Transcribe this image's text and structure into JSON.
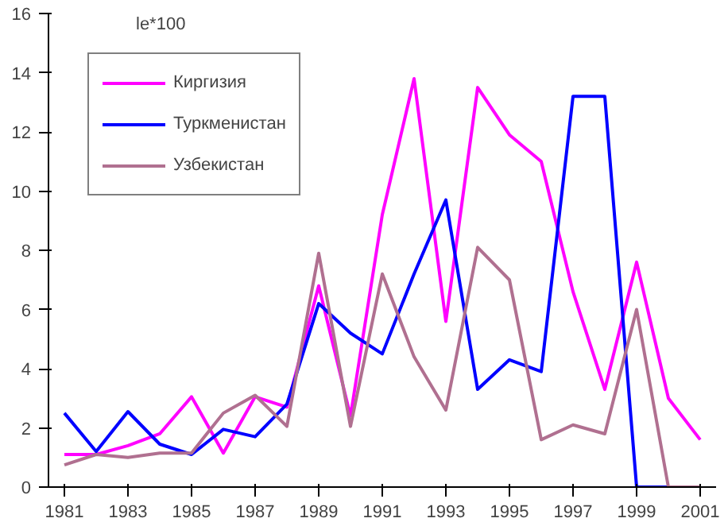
{
  "chart_data": {
    "type": "line",
    "annotations": [
      "le*100"
    ],
    "x": [
      1981,
      1982,
      1983,
      1984,
      1985,
      1986,
      1987,
      1988,
      1989,
      1990,
      1991,
      1992,
      1993,
      1994,
      1995,
      1996,
      1997,
      1998,
      1999,
      2000,
      2001
    ],
    "xlim": [
      1980.5,
      2001.5
    ],
    "xticks": [
      1981,
      1983,
      1985,
      1987,
      1989,
      1991,
      1993,
      1995,
      1997,
      1999,
      2001
    ],
    "ylim": [
      0,
      16
    ],
    "yticks": [
      0,
      2,
      4,
      6,
      8,
      10,
      12,
      14,
      16
    ],
    "grid": false,
    "legend": "top left",
    "marker": "none",
    "line_style": "solid",
    "series": [
      {
        "name": "Киргизия",
        "color": "#ff00ff",
        "values": [
          1.1,
          1.1,
          1.4,
          1.8,
          3.05,
          1.15,
          3.05,
          2.7,
          6.8,
          2.4,
          9.2,
          13.8,
          5.6,
          13.5,
          11.9,
          11.0,
          6.6,
          3.3,
          7.6,
          3.0,
          1.6
        ]
      },
      {
        "name": "Туркменистан",
        "color": "#0000ff",
        "values": [
          2.5,
          1.2,
          2.55,
          1.45,
          1.1,
          1.95,
          1.7,
          2.8,
          6.2,
          5.2,
          4.5,
          7.2,
          9.7,
          3.3,
          4.3,
          3.9,
          13.2,
          13.2,
          0,
          0,
          null
        ]
      },
      {
        "name": "Узбекистан",
        "color": "#b07090",
        "values": [
          0.75,
          1.1,
          1.0,
          1.15,
          1.15,
          2.5,
          3.1,
          2.05,
          7.9,
          2.05,
          7.2,
          4.4,
          2.6,
          8.1,
          7.0,
          1.6,
          2.1,
          1.8,
          6.0,
          0,
          0
        ]
      }
    ]
  }
}
